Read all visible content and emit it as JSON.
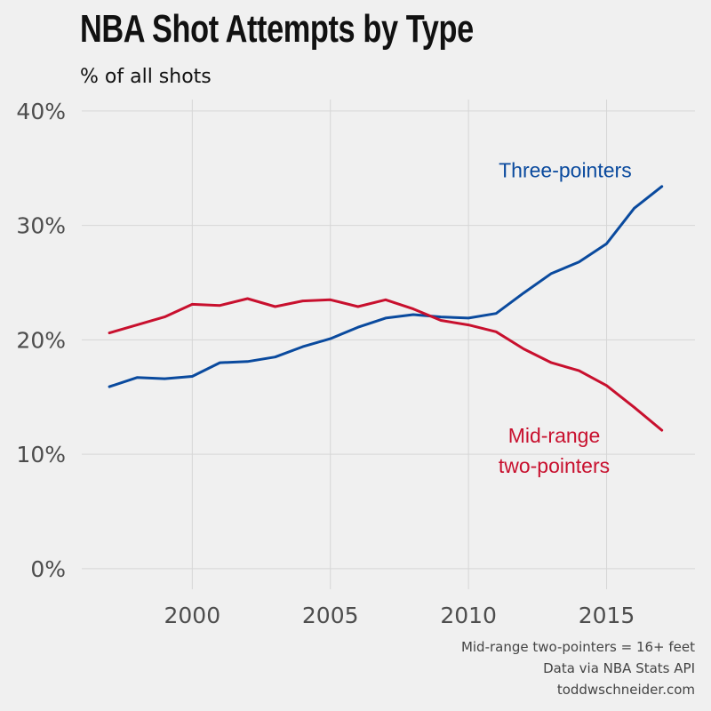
{
  "chart_data": {
    "type": "line",
    "title": "NBA Shot Attempts by Type",
    "subtitle": "% of all shots",
    "x": [
      1997,
      1998,
      1999,
      2000,
      2001,
      2002,
      2003,
      2004,
      2005,
      2006,
      2007,
      2008,
      2009,
      2010,
      2011,
      2012,
      2013,
      2014,
      2015,
      2016,
      2017
    ],
    "series": [
      {
        "name": "Three-pointers",
        "color": "#0a4a9e",
        "values": [
          15.9,
          16.7,
          16.6,
          16.8,
          18.0,
          18.1,
          18.5,
          19.4,
          20.1,
          21.1,
          21.9,
          22.2,
          22.0,
          21.9,
          22.3,
          24.1,
          25.8,
          26.8,
          28.4,
          31.5,
          33.4
        ]
      },
      {
        "name": "Mid-range two-pointers",
        "color": "#c8102e",
        "values": [
          20.6,
          21.3,
          22.0,
          23.1,
          23.0,
          23.6,
          22.9,
          23.4,
          23.5,
          22.9,
          23.5,
          22.7,
          21.7,
          21.3,
          20.7,
          19.2,
          18.0,
          17.3,
          16.0,
          14.1,
          12.1
        ]
      }
    ],
    "series_labels": [
      {
        "lines": [
          "Three-pointers"
        ],
        "color": "#0a4a9e",
        "x": 2013.5,
        "y": 34.2
      },
      {
        "lines": [
          "Mid-range",
          "two-pointers"
        ],
        "color": "#c8102e",
        "x": 2013.1,
        "y": 11.0
      }
    ],
    "xticks": [
      2000,
      2005,
      2010,
      2015
    ],
    "xtick_labels": [
      "2000",
      "2005",
      "2010",
      "2015"
    ],
    "yticks": [
      0,
      10,
      20,
      30,
      40
    ],
    "ytick_labels": [
      "0%",
      "10%",
      "20%",
      "30%",
      "40%"
    ],
    "xlabel": "",
    "ylabel": "",
    "xlim": [
      1996.0,
      2018.2
    ],
    "ylim": [
      -1.8,
      41.0
    ],
    "grid": true,
    "legend": "none"
  },
  "caption": {
    "line1": "Mid-range two-pointers = 16+ feet",
    "line2": "Data via NBA Stats API",
    "line3": "toddwschneider.com"
  }
}
